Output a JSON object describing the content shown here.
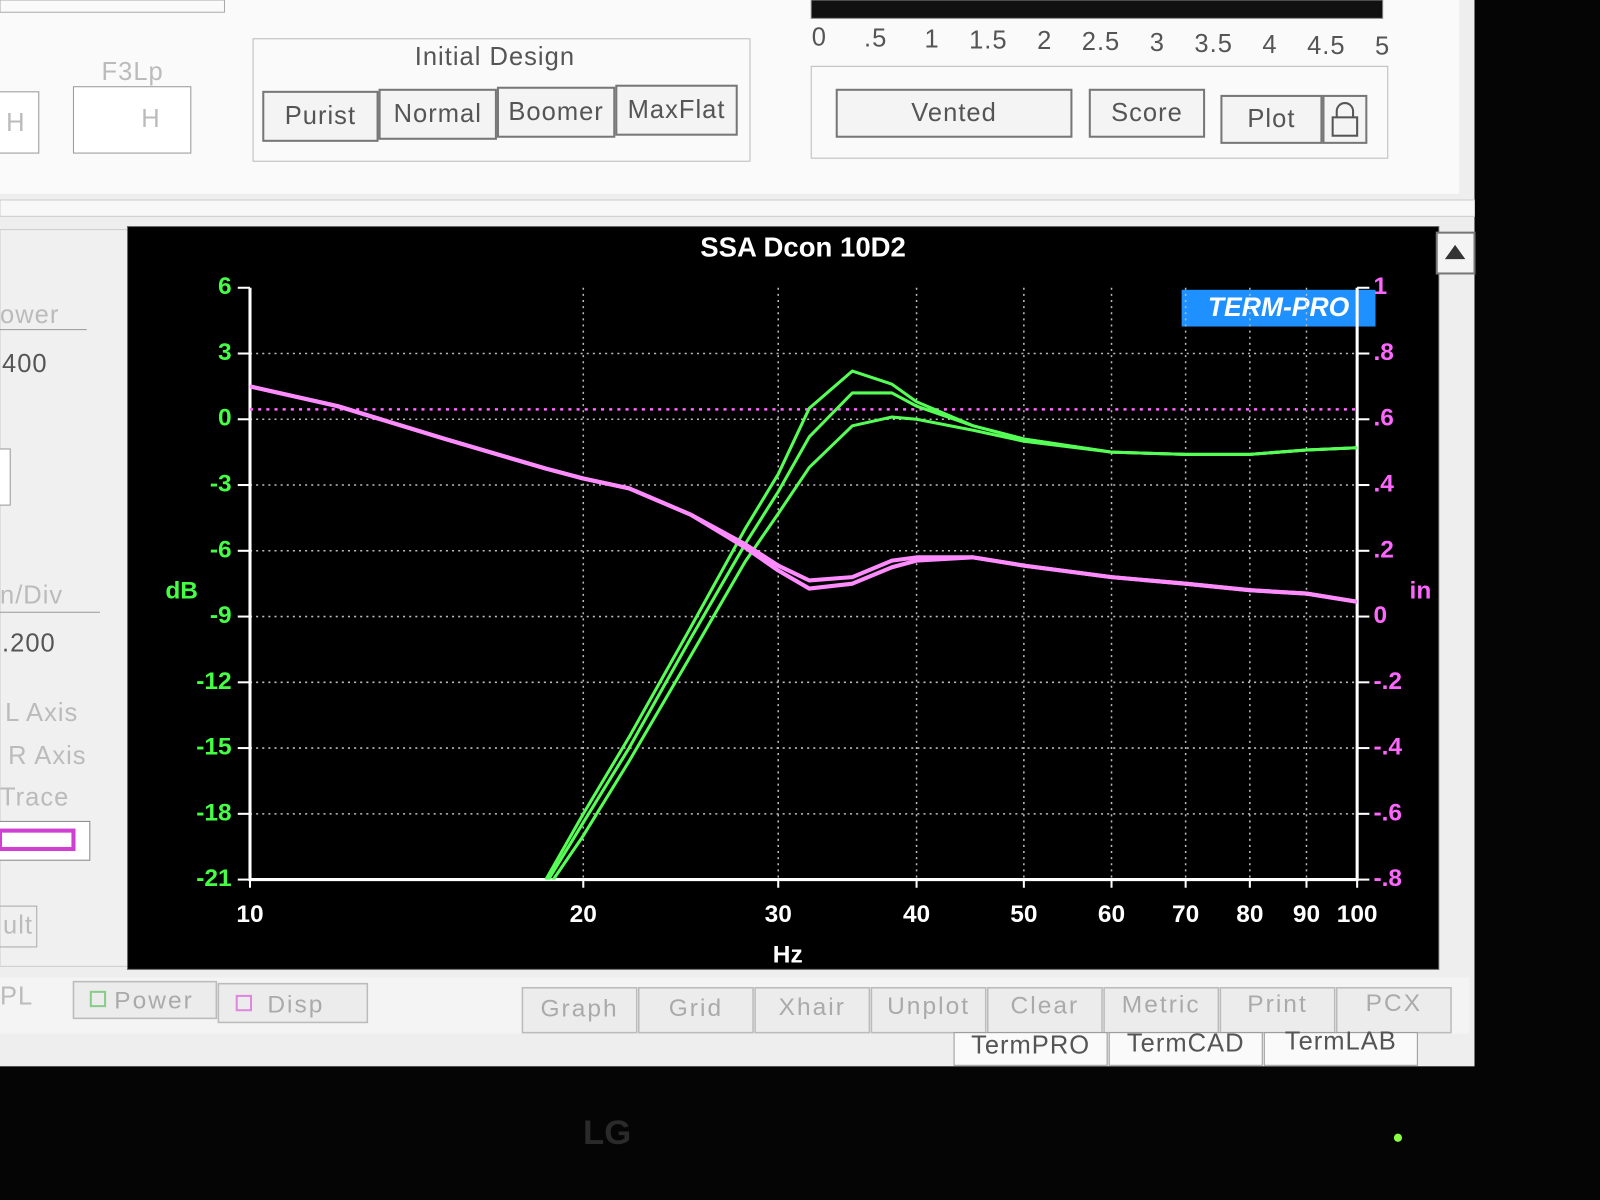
{
  "ui": {
    "top_left_label": "F3Lp",
    "field_units": [
      "H",
      "H"
    ],
    "initial_design": "Initial Design",
    "design_buttons": [
      "Purist",
      "Normal",
      "Boomer",
      "MaxFlat"
    ],
    "scale_labels": [
      "0",
      ".5",
      "1",
      "1.5",
      "2",
      "2.5",
      "3",
      "3.5",
      "4",
      "4.5",
      "5"
    ],
    "right_buttons": [
      "Vented",
      "Score",
      "Plot"
    ],
    "side_panel": [
      "ower",
      "400",
      "n/Div",
      ".200",
      "L Axis",
      "R Axis",
      "Trace",
      "ult"
    ],
    "legend_toggles": [
      "PL",
      "Power",
      "Disp"
    ],
    "toolbar": [
      "Graph",
      "Grid",
      "Xhair",
      "Unplot",
      "Clear",
      "Metric",
      "Print",
      "PCX"
    ],
    "tabs": [
      "TermPRO",
      "TermCAD",
      "TermLAB"
    ],
    "brand": "LG"
  },
  "chart_data": {
    "type": "line",
    "title": "SSA Dcon 10D2",
    "logo": "TERM-PRO",
    "x_label": "Hz",
    "y_label": "dB",
    "y2_label": "in",
    "log_x": true,
    "grid": true,
    "x": [
      10,
      12,
      15,
      18.5,
      20,
      22,
      25,
      28,
      30,
      32,
      35,
      38,
      40,
      45,
      50,
      60,
      70,
      80,
      90,
      100
    ],
    "xlim": [
      10,
      100
    ],
    "xticks": [
      10,
      20,
      30,
      40,
      50,
      60,
      70,
      80,
      90,
      100
    ],
    "ylim": [
      -21,
      6
    ],
    "yticks": [
      -21,
      -18,
      -15,
      -12,
      -9,
      -6,
      -3,
      0,
      3,
      6
    ],
    "y2lim": [
      -0.8,
      1
    ],
    "y2ticks": [
      {
        "value": -0.8,
        "label": "-.8"
      },
      {
        "value": -0.6,
        "label": "-.6"
      },
      {
        "value": -0.4,
        "label": "-.4"
      },
      {
        "value": -0.2,
        "label": "-.2"
      },
      0,
      {
        "value": 0.2,
        "label": ".2"
      },
      {
        "value": 0.4,
        "label": ".4"
      },
      {
        "value": 0.6,
        "label": ".6"
      },
      {
        "value": 0.8,
        "label": ".8"
      },
      1
    ],
    "series": [
      {
        "color": "#55ff55",
        "values": [
          null,
          null,
          null,
          -21,
          -18,
          -14.5,
          -9.5,
          -5,
          -2.5,
          0.5,
          2.2,
          1.6,
          0.8,
          -0.3,
          -0.9,
          -1.5,
          -1.6,
          -1.6,
          -1.4,
          -1.3
        ]
      },
      {
        "color": "#55ff55",
        "values": [
          null,
          null,
          null,
          -21.2,
          -18.4,
          -15,
          -10,
          -5.7,
          -3.3,
          -0.8,
          1.2,
          1.2,
          0.6,
          -0.3,
          -0.9,
          -1.5,
          -1.6,
          -1.6,
          -1.4,
          -1.3
        ]
      },
      {
        "color": "#55ff55",
        "values": [
          null,
          null,
          null,
          -21.5,
          -19,
          -15.6,
          -10.8,
          -6.5,
          -4.3,
          -2.2,
          -0.3,
          0.1,
          0,
          -0.5,
          -1,
          -1.5,
          -1.6,
          -1.6,
          -1.4,
          -1.3
        ]
      },
      {
        "color": "#ff8cff",
        "axis": "y2",
        "values": [
          0.7,
          0.64,
          0.54,
          0.45,
          0.42,
          0.39,
          0.31,
          0.22,
          0.155,
          0.11,
          0.12,
          0.17,
          0.18,
          0.18,
          0.155,
          0.12,
          0.1,
          0.08,
          0.07,
          0.045
        ]
      },
      {
        "color": "#ff8cff",
        "axis": "y2",
        "values": [
          0.7,
          0.64,
          0.54,
          0.45,
          0.42,
          0.39,
          0.31,
          0.21,
          0.14,
          0.085,
          0.1,
          0.15,
          0.17,
          0.18,
          0.155,
          0.12,
          0.1,
          0.08,
          0.07,
          0.045
        ]
      }
    ],
    "reference_lines": [
      {
        "axis": "y2",
        "value": 0.63,
        "color": "#ff66ff"
      }
    ]
  }
}
